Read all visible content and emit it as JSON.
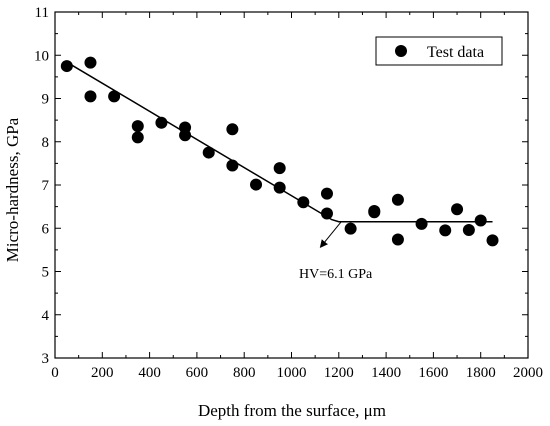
{
  "chart_data": {
    "type": "scatter",
    "xlabel": "Depth from the surface, μm",
    "ylabel": "Micro-hardness, GPa",
    "xlim": [
      0,
      2000
    ],
    "ylim": [
      3,
      11
    ],
    "xticks": [
      0,
      200,
      400,
      600,
      800,
      1000,
      1200,
      1400,
      1600,
      1800,
      2000
    ],
    "yticks": [
      3,
      4,
      5,
      6,
      7,
      8,
      9,
      10,
      11
    ],
    "grid": false,
    "legend": {
      "position": "top-right",
      "entries": [
        "Test data"
      ]
    },
    "series": [
      {
        "name": "Test data",
        "marker": "filled-circle",
        "color": "#000000",
        "points": [
          {
            "x": 50,
            "y": 9.75
          },
          {
            "x": 150,
            "y": 9.83
          },
          {
            "x": 150,
            "y": 9.05
          },
          {
            "x": 250,
            "y": 9.05
          },
          {
            "x": 350,
            "y": 8.36
          },
          {
            "x": 350,
            "y": 8.1
          },
          {
            "x": 450,
            "y": 8.44
          },
          {
            "x": 550,
            "y": 8.33
          },
          {
            "x": 550,
            "y": 8.15
          },
          {
            "x": 650,
            "y": 7.75
          },
          {
            "x": 750,
            "y": 8.29
          },
          {
            "x": 750,
            "y": 7.45
          },
          {
            "x": 850,
            "y": 7.01
          },
          {
            "x": 950,
            "y": 7.39
          },
          {
            "x": 950,
            "y": 6.94
          },
          {
            "x": 1050,
            "y": 6.6
          },
          {
            "x": 1150,
            "y": 6.8
          },
          {
            "x": 1150,
            "y": 6.34
          },
          {
            "x": 1250,
            "y": 5.99
          },
          {
            "x": 1350,
            "y": 6.4
          },
          {
            "x": 1350,
            "y": 6.37
          },
          {
            "x": 1450,
            "y": 6.66
          },
          {
            "x": 1450,
            "y": 5.74
          },
          {
            "x": 1550,
            "y": 6.1
          },
          {
            "x": 1650,
            "y": 5.95
          },
          {
            "x": 1700,
            "y": 6.44
          },
          {
            "x": 1750,
            "y": 5.96
          },
          {
            "x": 1800,
            "y": 6.18
          },
          {
            "x": 1850,
            "y": 5.72
          }
        ]
      }
    ],
    "trend_line": {
      "color": "#000000",
      "points": [
        {
          "x": 50,
          "y": 9.84
        },
        {
          "x": 1170,
          "y": 6.2
        },
        {
          "x": 1200,
          "y": 6.15
        },
        {
          "x": 1850,
          "y": 6.15
        }
      ]
    },
    "annotations": [
      {
        "text": "HV=6.1 GPa",
        "arrow_from": {
          "x": 1210,
          "y": 6.15
        },
        "arrow_to": {
          "x": 1125,
          "y": 5.58
        }
      }
    ]
  }
}
